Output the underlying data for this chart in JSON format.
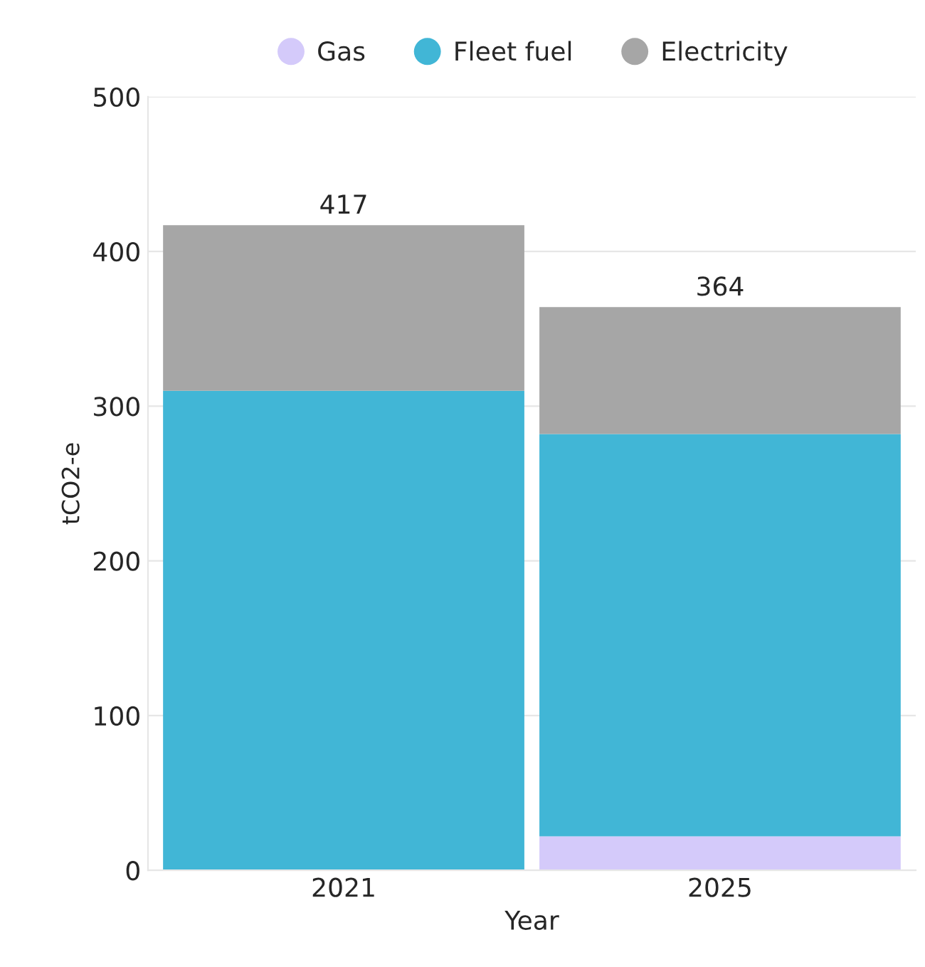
{
  "chart_data": {
    "type": "bar",
    "stacked": true,
    "xlabel": "Year",
    "ylabel": "tCO2-e",
    "categories": [
      "2021",
      "2025"
    ],
    "series": [
      {
        "name": "Gas",
        "color": "#d4cafa",
        "values": [
          0,
          22
        ]
      },
      {
        "name": "Fleet fuel",
        "color": "#41b6d6",
        "values": [
          310,
          260
        ]
      },
      {
        "name": "Electricity",
        "color": "#a6a6a6",
        "values": [
          107,
          82
        ]
      }
    ],
    "totals": [
      "417",
      "364"
    ],
    "ylim": [
      0,
      500
    ],
    "yticks": [
      0,
      100,
      200,
      300,
      400,
      500
    ],
    "grid": "y",
    "legend": "top"
  }
}
